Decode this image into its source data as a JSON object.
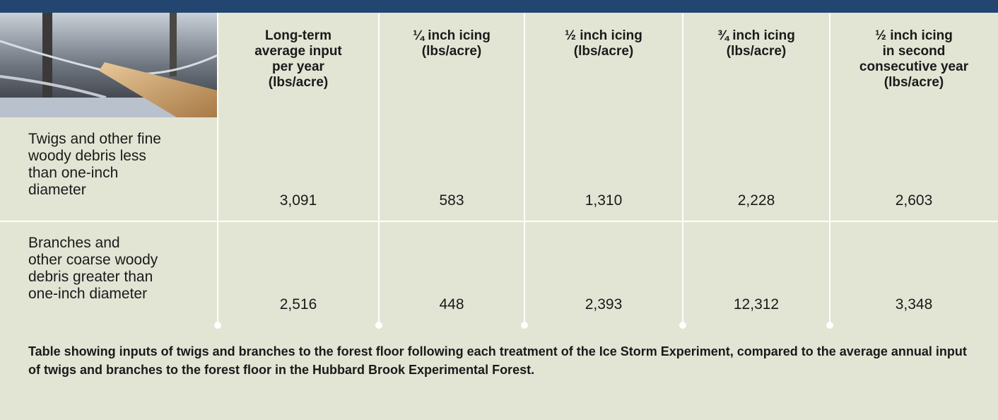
{
  "table": {
    "columns": [
      "Long-term\naverage input\nper year\n(lbs/acre)",
      "¼ inch icing\n(lbs/acre)",
      "½ inch icing\n(lbs/acre)",
      "¾ inch icing\n(lbs/acre)",
      "½ inch icing\nin second\nconsecutive year\n(lbs/acre)"
    ],
    "rows": [
      {
        "label": "Twigs and other fine\nwoody debris less\nthan one-inch\ndiameter",
        "values": [
          "3,091",
          "583",
          "1,310",
          "2,228",
          "2,603"
        ]
      },
      {
        "label": "Branches and\nother coarse woody\ndebris greater than\none-inch diameter",
        "values": [
          "2,516",
          "448",
          "2,393",
          "12,312",
          "3,348"
        ]
      }
    ]
  },
  "caption": "Table showing inputs of twigs and branches to the forest floor following each treatment of the Ice Storm Experiment, compared to the average annual input of twigs and branches to the forest floor in the Hubbard Brook Experimental Forest."
}
